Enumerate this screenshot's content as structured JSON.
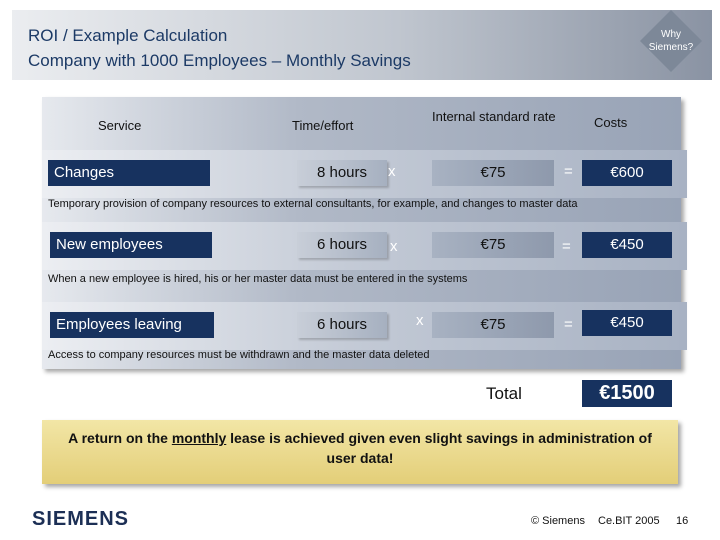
{
  "header": {
    "title_line1": "ROI / Example Calculation",
    "title_line2": "Company with 1000 Employees – Monthly Savings",
    "why_line1": "Why",
    "why_line2": "Siemens?"
  },
  "columns": {
    "service": "Service",
    "time": "Time/effort",
    "rate": "Internal standard rate",
    "costs": "Costs"
  },
  "rows": [
    {
      "service": "Changes",
      "hours": "8 hours",
      "multiply": "x",
      "rate": "€75",
      "equals": "=",
      "cost": "€600",
      "note": "Temporary provision of company resources to external consultants, for example, and changes to master data"
    },
    {
      "service": "New employees",
      "hours": "6 hours",
      "multiply": "x",
      "rate": "€75",
      "equals": "=",
      "cost": "€450",
      "note": "When a new employee is hired, his or her master data must be entered in the systems"
    },
    {
      "service": "Employees leaving",
      "hours": "6 hours",
      "multiply": "x",
      "rate": "€75",
      "equals": "=",
      "cost": "€450",
      "note": "Access to company resources must be withdrawn and the master data deleted"
    }
  ],
  "total": {
    "label": "Total",
    "value": "€1500"
  },
  "summary": {
    "part1": "A return on the ",
    "emphasis": "monthly",
    "part2": " lease is achieved given even slight savings in administration of user data!"
  },
  "footer": {
    "logo": "SIEMENS",
    "copyright": "© Siemens",
    "event": "Ce.BIT 2005",
    "page": "16"
  },
  "colors": {
    "navy": "#17325f",
    "gold": "#e3ce78"
  }
}
